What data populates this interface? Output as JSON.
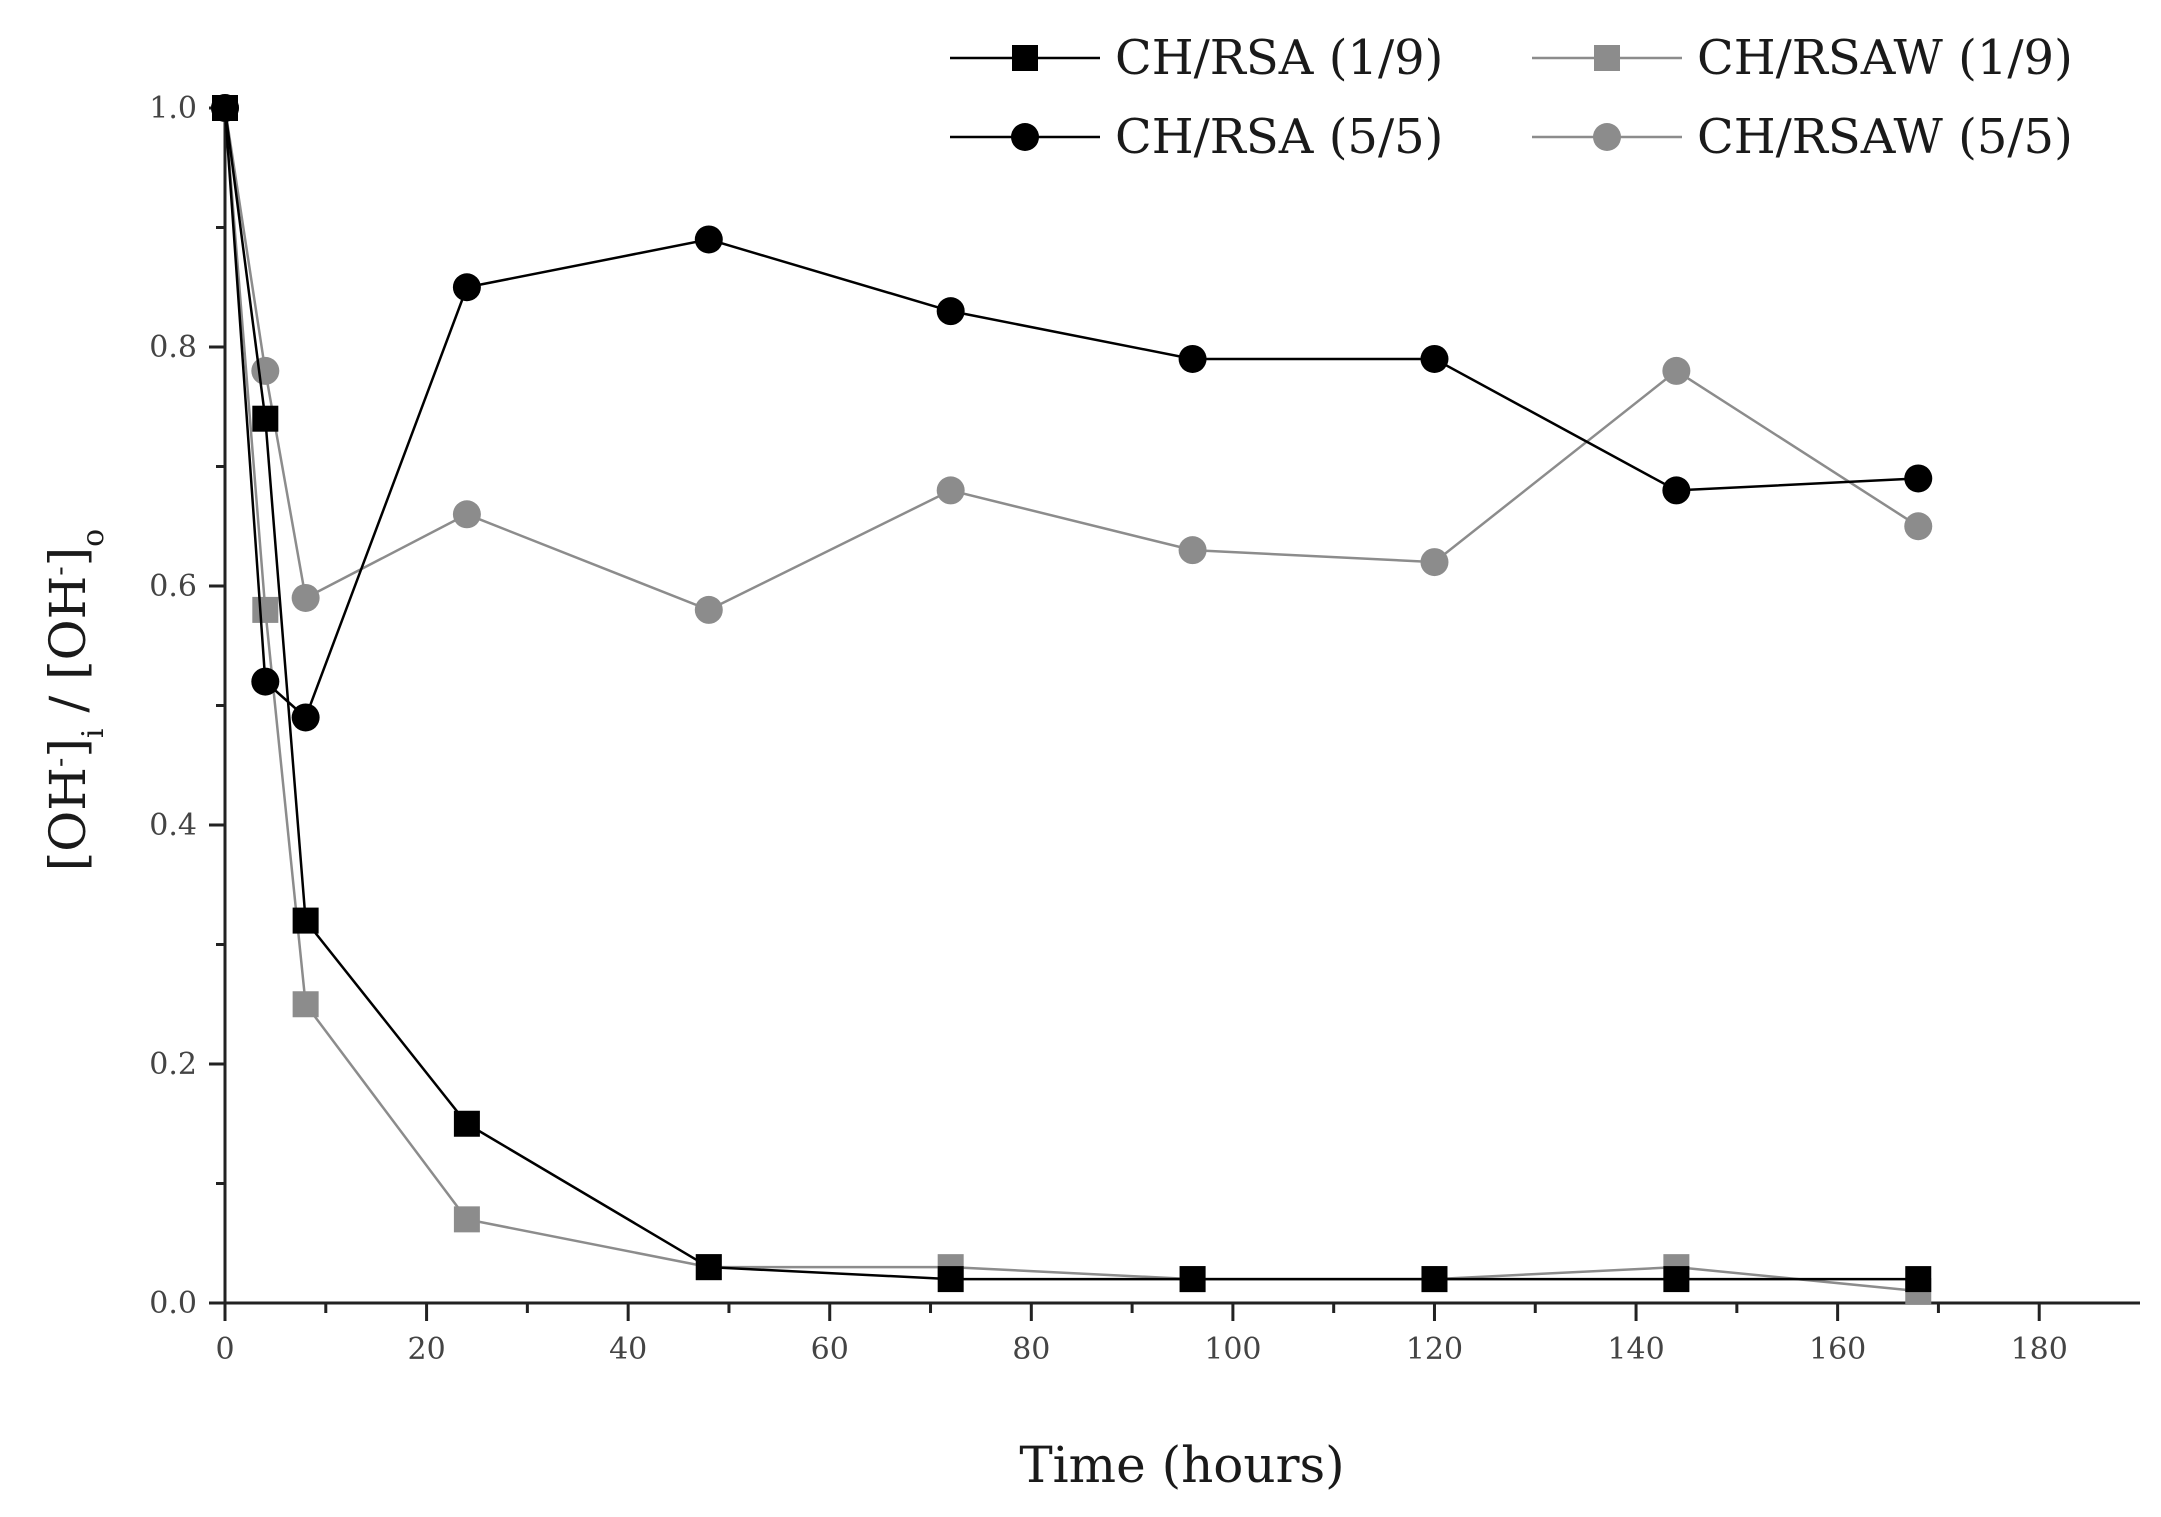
{
  "chart_data": {
    "type": "line",
    "title": "",
    "xlabel": "Time (hours)",
    "ylabel": {
      "bracket_open": "[OH",
      "superscript": "-",
      "bracket_close": "]",
      "subscript_i": "i",
      "separator": " / ",
      "bracket_open_2": "[OH",
      "superscript_2": "-",
      "bracket_close_2": "]",
      "subscript_o": "o"
    },
    "xlim": [
      0,
      190
    ],
    "ylim": [
      0,
      1.0
    ],
    "xticks": [
      0,
      20,
      40,
      60,
      80,
      100,
      120,
      140,
      160,
      180
    ],
    "xtick_labels": [
      "0",
      "20",
      "40",
      "60",
      "80",
      "100",
      "120",
      "140",
      "160",
      "180"
    ],
    "yticks": [
      0,
      0.2,
      0.4,
      0.6,
      0.8,
      1.0
    ],
    "ytick_labels": [
      "0.0",
      "0.2",
      "0.4",
      "0.6",
      "0.8",
      "1.0"
    ],
    "grid": false,
    "legend_position": "top-right",
    "series": [
      {
        "name": "CH/RSA (1/9)",
        "marker": "square",
        "color": "#000000",
        "x": [
          0,
          4,
          8,
          24,
          48,
          72,
          96,
          120,
          144,
          168
        ],
        "y": [
          1.0,
          0.74,
          0.32,
          0.15,
          0.03,
          0.02,
          0.02,
          0.02,
          0.02,
          0.02
        ]
      },
      {
        "name": "CH/RSAW (1/9)",
        "marker": "square",
        "color": "#8c8c8c",
        "x": [
          0,
          4,
          8,
          24,
          48,
          72,
          96,
          120,
          144,
          168
        ],
        "y": [
          1.0,
          0.58,
          0.25,
          0.07,
          0.03,
          0.03,
          0.02,
          0.02,
          0.03,
          0.01
        ]
      },
      {
        "name": "CH/RSA (5/5)",
        "marker": "circle",
        "color": "#000000",
        "x": [
          0,
          4,
          8,
          24,
          48,
          72,
          96,
          120,
          144,
          168
        ],
        "y": [
          1.0,
          0.52,
          0.49,
          0.85,
          0.89,
          0.83,
          0.79,
          0.79,
          0.68,
          0.69
        ]
      },
      {
        "name": "CH/RSAW (5/5)",
        "marker": "circle",
        "color": "#8c8c8c",
        "x": [
          0,
          4,
          8,
          24,
          48,
          72,
          96,
          120,
          144,
          168
        ],
        "y": [
          1.0,
          0.78,
          0.59,
          0.66,
          0.58,
          0.68,
          0.63,
          0.62,
          0.78,
          0.65
        ]
      }
    ]
  }
}
